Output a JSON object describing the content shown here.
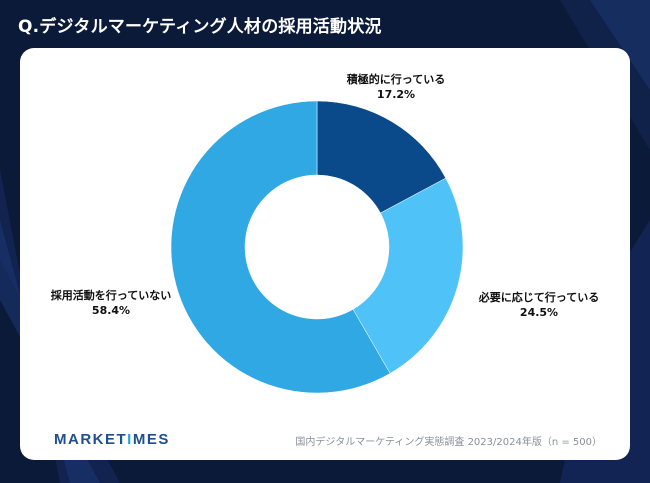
{
  "title": "Q.デジタルマーケティング人材の採用活動状況",
  "brand": {
    "prefix": "MARKET",
    "accent": "I",
    "suffix": "MES"
  },
  "source": "国内デジタルマーケティング実態調査 2023/2024年版（n = 500）",
  "colors": {
    "background": "#0c1a3a",
    "card": "#ffffff",
    "brand": "#1e4f8f",
    "brand_accent": "#2a9fe0"
  },
  "chart_data": {
    "type": "pie",
    "donut": true,
    "slices": [
      {
        "label": "積極的に行っている",
        "value_text": "17.2%",
        "value": 17.2,
        "color": "#0a4a8a"
      },
      {
        "label": "必要に応じて行っている",
        "value_text": "24.5%",
        "value": 24.5,
        "color": "#4fc3f7"
      },
      {
        "label": "採用活動を行っていない",
        "value_text": "58.4%",
        "value": 58.4,
        "color": "#2fa8e3"
      }
    ]
  }
}
